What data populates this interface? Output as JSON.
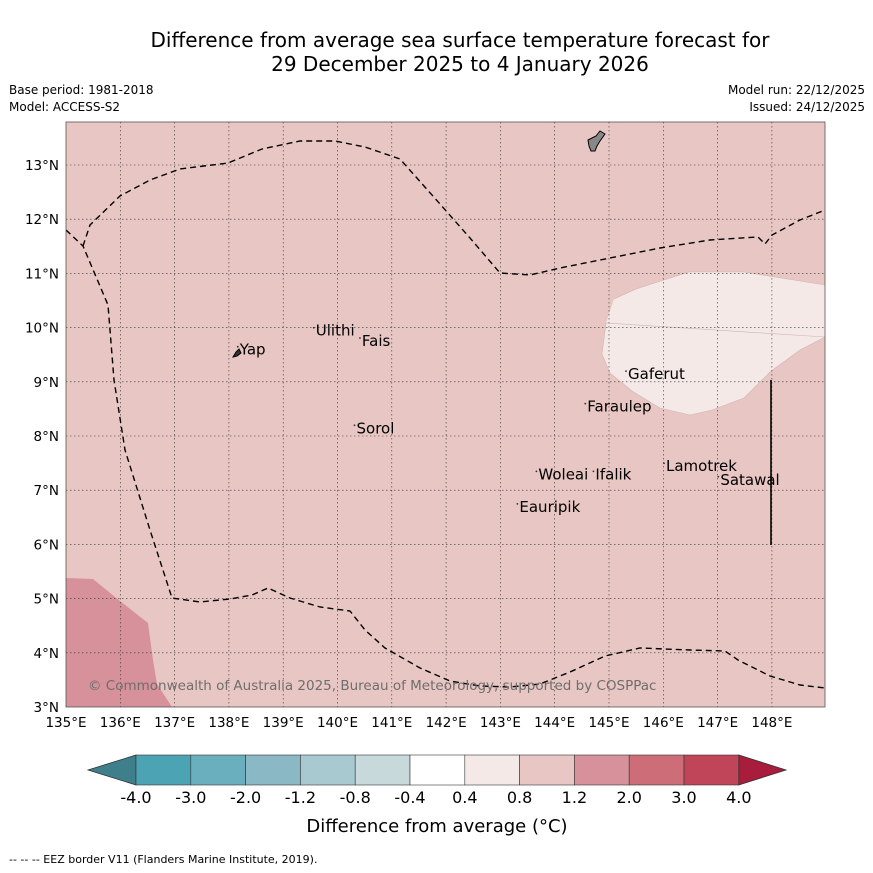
{
  "title": {
    "line1": "Difference from average sea surface temperature forecast for",
    "line2": "29 December 2025 to 4 January 2026"
  },
  "meta": {
    "base_period": "Base period: 1981-2018",
    "model": "Model: ACCESS-S2",
    "model_run": "Model run: 22/12/2025",
    "issued": "Issued: 24/12/2025"
  },
  "map": {
    "extent": {
      "lon": [
        135,
        149
      ],
      "lat": [
        3,
        13.8
      ]
    },
    "lon_ticks": [
      {
        "value": 135,
        "label": "135°E"
      },
      {
        "value": 136,
        "label": "136°E"
      },
      {
        "value": 137,
        "label": "137°E"
      },
      {
        "value": 138,
        "label": "138°E"
      },
      {
        "value": 139,
        "label": "139°E"
      },
      {
        "value": 140,
        "label": "140°E"
      },
      {
        "value": 141,
        "label": "141°E"
      },
      {
        "value": 142,
        "label": "142°E"
      },
      {
        "value": 143,
        "label": "143°E"
      },
      {
        "value": 144,
        "label": "144°E"
      },
      {
        "value": 145,
        "label": "145°E"
      },
      {
        "value": 146,
        "label": "146°E"
      },
      {
        "value": 147,
        "label": "147°E"
      },
      {
        "value": 148,
        "label": "148°E"
      }
    ],
    "lat_ticks": [
      {
        "value": 3,
        "label": "3°N"
      },
      {
        "value": 4,
        "label": "4°N"
      },
      {
        "value": 5,
        "label": "5°N"
      },
      {
        "value": 6,
        "label": "6°N"
      },
      {
        "value": 7,
        "label": "7°N"
      },
      {
        "value": 8,
        "label": "8°N"
      },
      {
        "value": 9,
        "label": "9°N"
      },
      {
        "value": 10,
        "label": "10°N"
      },
      {
        "value": 11,
        "label": "11°N"
      },
      {
        "value": 12,
        "label": "12°N"
      },
      {
        "value": 13,
        "label": "13°N"
      }
    ],
    "places": [
      {
        "name": "Yap",
        "lon": 138.2,
        "lat": 9.5
      },
      {
        "name": "Ulithi",
        "lon": 139.6,
        "lat": 9.85
      },
      {
        "name": "Fais",
        "lon": 140.45,
        "lat": 9.66
      },
      {
        "name": "Sorol",
        "lon": 140.35,
        "lat": 8.05
      },
      {
        "name": "Gaferut",
        "lon": 145.35,
        "lat": 9.05
      },
      {
        "name": "Faraulep",
        "lon": 144.6,
        "lat": 8.45
      },
      {
        "name": "Woleai",
        "lon": 143.7,
        "lat": 7.2
      },
      {
        "name": "Ifalik",
        "lon": 144.75,
        "lat": 7.2
      },
      {
        "name": "Lamotrek",
        "lon": 146.05,
        "lat": 7.35
      },
      {
        "name": "Satawal",
        "lon": 147.05,
        "lat": 7.1
      },
      {
        "name": "Eauripik",
        "lon": 143.35,
        "lat": 6.6
      }
    ],
    "copyright": "© Commonwealth of Australia 2025, Bureau of Meteorology, supported by COSPPac"
  },
  "colorbar": {
    "label": "Difference from average (°C)",
    "ticks": [
      "-4.0",
      "-3.0",
      "-2.0",
      "-1.2",
      "-0.8",
      "-0.4",
      "0.4",
      "0.8",
      "1.2",
      "2.0",
      "3.0",
      "4.0"
    ],
    "colors": [
      "#3f7f8c",
      "#4ba3b4",
      "#6aafbd",
      "#8ab9c5",
      "#a9c9d0",
      "#c8d9dc",
      "#ffffff",
      "#f5e9e8",
      "#e8c6c3",
      "#d6919a",
      "#cc6d78",
      "#c04558",
      "#a81c3c"
    ]
  },
  "colors": {
    "anomaly_0_4_to_0_8": "#f5e9e8",
    "anomaly_0_8_to_1_2": "#e8c6c3",
    "anomaly_1_2_to_2_0": "#d6919a",
    "eez_line": "#000000",
    "land": "#888888"
  },
  "footer": "-- -- -- EEZ border V11 (Flanders Marine Institute, 2019)."
}
